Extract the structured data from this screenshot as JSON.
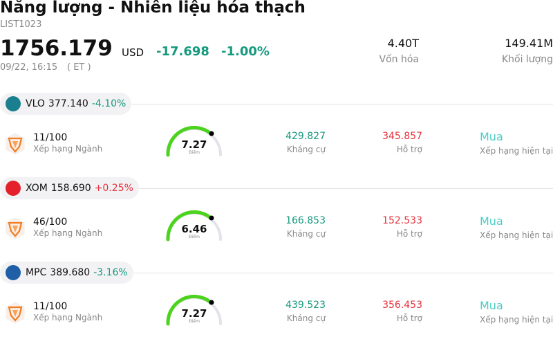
{
  "header": {
    "title": "Năng lượng - Nhiên liệu hóa thạch",
    "code": "LIST1023",
    "price": "1756.179",
    "currency": "USD",
    "change": "-17.698",
    "change_pct": "-1.00%",
    "time": "09/22, 16:15",
    "timezone": "( ET )",
    "stats": [
      {
        "value": "4.40T",
        "label": "Vốn hóa"
      },
      {
        "value": "149.41M",
        "label": "Khối lượng"
      }
    ]
  },
  "stocks": [
    {
      "ticker": "VLO",
      "price": "377.140",
      "change_pct": "-4.10%",
      "direction": "down",
      "logo_color": "#1a7f8e",
      "rank": "11/100",
      "rank_label": "Xếp hạng Ngành",
      "score": "7.27",
      "score_label": "Điểm",
      "resistance": "429.827",
      "resistance_label": "Kháng cự",
      "support": "345.857",
      "support_label": "Hỗ trợ",
      "rating": "Mua",
      "rating_label": "Xếp hạng hiện tại"
    },
    {
      "ticker": "XOM",
      "price": "158.690",
      "change_pct": "+0.25%",
      "direction": "up",
      "logo_color": "#e3202b",
      "rank": "46/100",
      "rank_label": "Xếp hạng Ngành",
      "score": "6.46",
      "score_label": "Điểm",
      "resistance": "166.853",
      "resistance_label": "Kháng cự",
      "support": "152.533",
      "support_label": "Hỗ trợ",
      "rating": "Mua",
      "rating_label": "Xếp hạng hiện tại"
    },
    {
      "ticker": "MPC",
      "price": "389.680",
      "change_pct": "-3.16%",
      "direction": "down",
      "logo_color": "#1f5fa8",
      "rank": "11/100",
      "rank_label": "Xếp hạng Ngành",
      "score": "7.27",
      "score_label": "Điểm",
      "resistance": "439.523",
      "resistance_label": "Kháng cự",
      "support": "356.453",
      "support_label": "Hỗ trợ",
      "rating": "Mua",
      "rating_label": "Xếp hạng hiện tại"
    }
  ]
}
